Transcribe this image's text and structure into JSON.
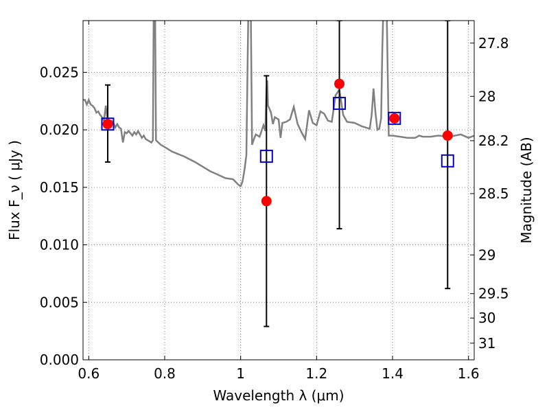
{
  "chart_data": {
    "type": "scatter",
    "xlabel": "Wavelength  λ (μm)",
    "ylabel": "Flux  F_ν  ( μJy )",
    "y2label": "Magnitude (AB)",
    "xlim": [
      0.585,
      1.615
    ],
    "ylim": [
      0.0,
      0.0295
    ],
    "grid": true,
    "x_ticks": [
      "0.6",
      "0.8",
      "1",
      "1.2",
      "1.4",
      "1.6"
    ],
    "x_tick_values": [
      0.6,
      0.8,
      1.0,
      1.2,
      1.4,
      1.6
    ],
    "y_ticks": [
      "0.000",
      "0.005",
      "0.010",
      "0.015",
      "0.020",
      "0.025"
    ],
    "y_tick_values": [
      0.0,
      0.005,
      0.01,
      0.015,
      0.02,
      0.025
    ],
    "y2_ticks": [
      "27.8",
      "28",
      "28.2",
      "28.5",
      "29",
      "29.5",
      "30",
      "31"
    ],
    "y2_tick_values": [
      27.8,
      28.0,
      28.2,
      28.5,
      29.0,
      29.5,
      30.0,
      31.0
    ],
    "colors": {
      "spectrum": "#808080",
      "observed": "#ff0000",
      "model": "#0000cc",
      "errorbar": "#000000",
      "grid": "#7f7f7f"
    },
    "spectrum": {
      "x": [
        0.585,
        0.59,
        0.595,
        0.6,
        0.605,
        0.61,
        0.615,
        0.62,
        0.625,
        0.63,
        0.635,
        0.64,
        0.645,
        0.65,
        0.655,
        0.66,
        0.665,
        0.67,
        0.675,
        0.68,
        0.685,
        0.69,
        0.695,
        0.7,
        0.705,
        0.71,
        0.715,
        0.72,
        0.725,
        0.73,
        0.735,
        0.74,
        0.745,
        0.75,
        0.755,
        0.76,
        0.765,
        0.769,
        0.771,
        0.775,
        0.777,
        0.78,
        0.79,
        0.8,
        0.82,
        0.85,
        0.88,
        0.9,
        0.92,
        0.94,
        0.96,
        0.98,
        0.995,
        1.0,
        1.005,
        1.01,
        1.015,
        1.02,
        1.022,
        1.025,
        1.027,
        1.03,
        1.035,
        1.04,
        1.05,
        1.06,
        1.065,
        1.068,
        1.07,
        1.072,
        1.075,
        1.08,
        1.085,
        1.09,
        1.1,
        1.105,
        1.11,
        1.12,
        1.13,
        1.14,
        1.15,
        1.16,
        1.17,
        1.18,
        1.19,
        1.2,
        1.21,
        1.22,
        1.23,
        1.24,
        1.25,
        1.26,
        1.27,
        1.28,
        1.3,
        1.32,
        1.34,
        1.345,
        1.35,
        1.355,
        1.36,
        1.365,
        1.37,
        1.373,
        1.375,
        1.378,
        1.38,
        1.385,
        1.39,
        1.4,
        1.42,
        1.44,
        1.46,
        1.47,
        1.48,
        1.5,
        1.52,
        1.55,
        1.58,
        1.6,
        1.615
      ],
      "y": [
        0.0226,
        0.0226,
        0.0222,
        0.0226,
        0.0222,
        0.0221,
        0.0219,
        0.0215,
        0.0216,
        0.0213,
        0.0211,
        0.0208,
        0.0221,
        0.0205,
        0.0207,
        0.0208,
        0.0206,
        0.0202,
        0.0205,
        0.0202,
        0.0201,
        0.0189,
        0.0198,
        0.0197,
        0.0199,
        0.0197,
        0.0195,
        0.0198,
        0.0196,
        0.0199,
        0.0196,
        0.0193,
        0.0195,
        0.0192,
        0.0191,
        0.019,
        0.0189,
        0.0191,
        0.0296,
        0.0296,
        0.0191,
        0.019,
        0.0187,
        0.0185,
        0.0181,
        0.0177,
        0.0172,
        0.0168,
        0.0164,
        0.0161,
        0.0158,
        0.0157,
        0.0152,
        0.0151,
        0.0155,
        0.0165,
        0.0178,
        0.0296,
        0.0296,
        0.0296,
        0.0296,
        0.0187,
        0.0192,
        0.0196,
        0.0194,
        0.0204,
        0.0199,
        0.0235,
        0.0243,
        0.0221,
        0.0219,
        0.0215,
        0.0205,
        0.0211,
        0.0209,
        0.0193,
        0.0206,
        0.0207,
        0.0209,
        0.022,
        0.0205,
        0.0198,
        0.0192,
        0.0217,
        0.0206,
        0.0204,
        0.0216,
        0.0214,
        0.0208,
        0.0207,
        0.023,
        0.0235,
        0.0213,
        0.0207,
        0.0206,
        0.0203,
        0.0201,
        0.0213,
        0.0236,
        0.0215,
        0.02,
        0.0201,
        0.021,
        0.027,
        0.0296,
        0.0296,
        0.0296,
        0.0296,
        0.0195,
        0.0195,
        0.0194,
        0.0193,
        0.0193,
        0.0195,
        0.0194,
        0.0194,
        0.0195,
        0.0194,
        0.0196,
        0.0193,
        0.0195
      ]
    },
    "observed": [
      {
        "x": 0.65,
        "y": 0.0205,
        "err_low": 0.0172,
        "err_high": 0.0239
      },
      {
        "x": 1.068,
        "y": 0.0138,
        "err_low": 0.0029,
        "err_high": 0.0247
      },
      {
        "x": 1.26,
        "y": 0.024,
        "err_low": 0.0114,
        "err_high": 0.0295
      },
      {
        "x": 1.405,
        "y": 0.021,
        "err_low": null,
        "err_high": null
      },
      {
        "x": 1.545,
        "y": 0.0195,
        "err_low": 0.0062,
        "err_high": 0.0295
      }
    ],
    "model": [
      {
        "x": 0.65,
        "y": 0.0205
      },
      {
        "x": 1.068,
        "y": 0.0177
      },
      {
        "x": 1.26,
        "y": 0.0223
      },
      {
        "x": 1.405,
        "y": 0.021
      },
      {
        "x": 1.545,
        "y": 0.0173
      }
    ]
  }
}
